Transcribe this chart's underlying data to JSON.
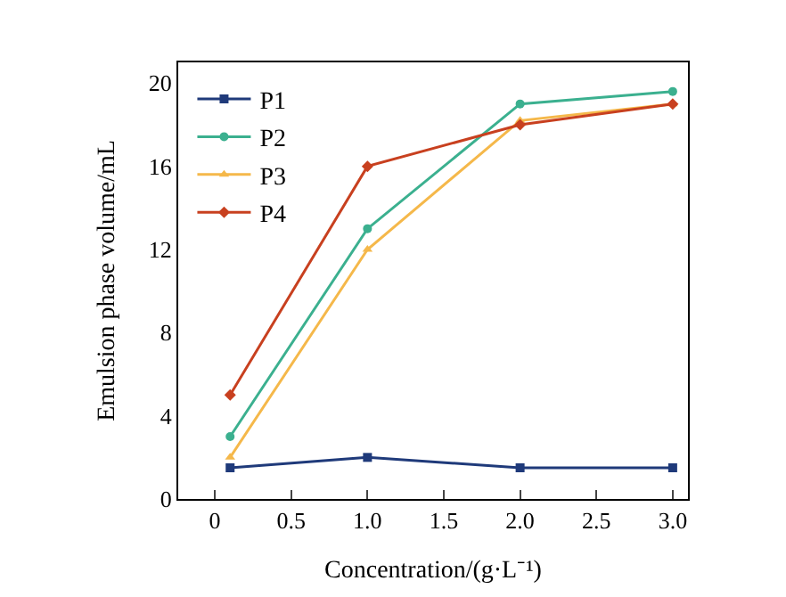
{
  "chart_data": {
    "type": "line",
    "xlabel": "Concentration/(g·L⁻¹)",
    "ylabel": "Emulsion phase volume/mL",
    "x": [
      0.1,
      1.0,
      2.0,
      3.0
    ],
    "series": [
      {
        "name": "P1",
        "color": "#1f3a7a",
        "marker": "square",
        "values": [
          1.5,
          2,
          1.5,
          1.5
        ]
      },
      {
        "name": "P2",
        "color": "#3bb08f",
        "marker": "circle",
        "values": [
          3,
          13,
          19,
          19.6
        ]
      },
      {
        "name": "P3",
        "color": "#f5b84a",
        "marker": "triangle",
        "values": [
          2,
          12,
          18.2,
          19
        ]
      },
      {
        "name": "P4",
        "color": "#c8401f",
        "marker": "diamond",
        "values": [
          5,
          16,
          18,
          19
        ]
      }
    ],
    "xlim": [
      -0.24,
      3.1
    ],
    "xticks": [
      0,
      0.5,
      {
        "value": 1,
        "label": "1.0"
      },
      1.5,
      {
        "value": 2,
        "label": "2.0"
      },
      2.5,
      {
        "value": 3,
        "label": "3.0"
      }
    ],
    "ylim": [
      0,
      21
    ],
    "yticks": [
      0,
      4,
      8,
      12,
      16,
      20
    ],
    "legend": "top left"
  }
}
